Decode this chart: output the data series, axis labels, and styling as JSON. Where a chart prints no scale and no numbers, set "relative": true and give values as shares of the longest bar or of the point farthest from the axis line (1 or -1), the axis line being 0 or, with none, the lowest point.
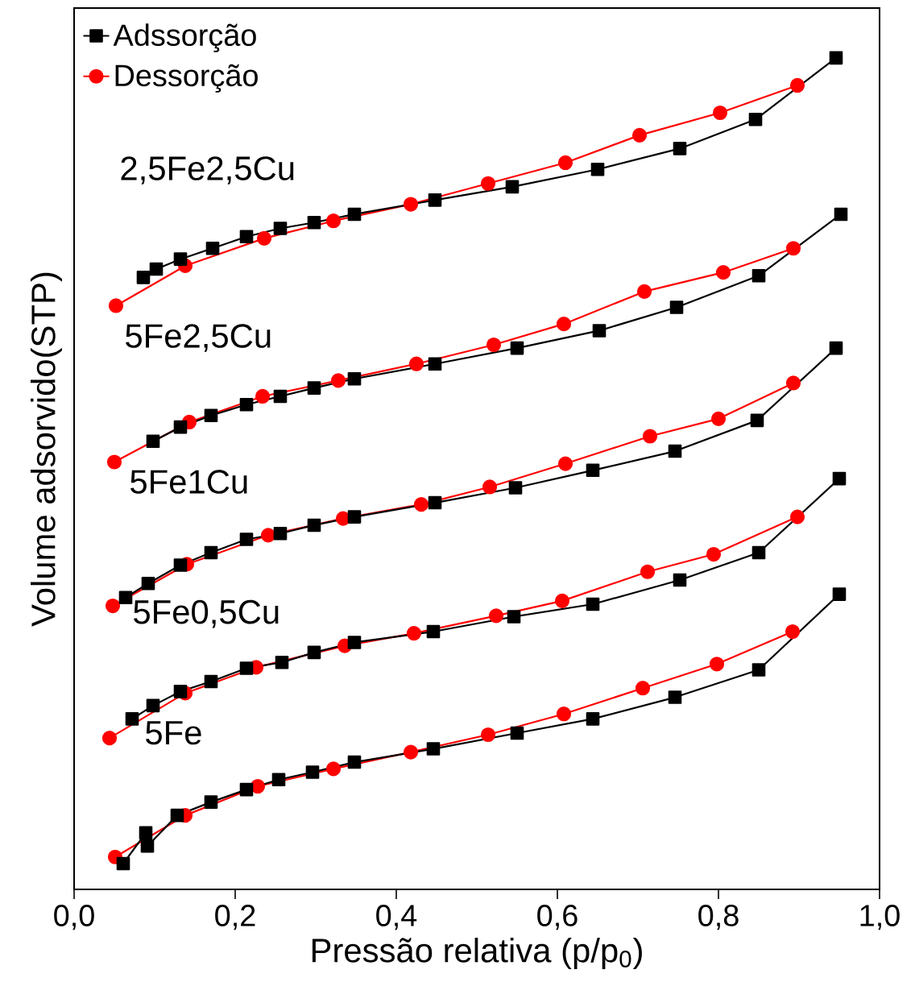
{
  "chart_data": {
    "type": "line",
    "relative": true,
    "xlabel": "Pressão relativa (p/p$_{0}$)",
    "ylabel": "Volume adsorvido(STP)",
    "xlim": [
      0,
      1
    ],
    "xticks": [
      {
        "value": 0,
        "label": "0,0"
      },
      {
        "value": 0.2,
        "label": "0,2"
      },
      {
        "value": 0.4,
        "label": "0,4"
      },
      {
        "value": 0.6,
        "label": "0,6"
      },
      {
        "value": 0.8,
        "label": "0,8"
      },
      {
        "value": 1,
        "label": "1,0"
      }
    ],
    "legend": "top left",
    "annotations": [
      "2,5Fe2,5Cu",
      "5Fe2,5Cu",
      "5Fe1Cu",
      "5Fe0,5Cu",
      "5Fe"
    ],
    "series": [
      {
        "name": "Adssorção",
        "color": "#000000",
        "marker": "square",
        "x": [
          0.086,
          0.102,
          0.132,
          0.172,
          0.214,
          0.256,
          0.298,
          0.348,
          0.448,
          0.544,
          0.65,
          0.752,
          0.846,
          0.946
        ],
        "values": [
          0.736,
          0.746,
          0.758,
          0.771,
          0.785,
          0.795,
          0.802,
          0.812,
          0.829,
          0.845,
          0.866,
          0.891,
          0.926,
          1
        ]
      },
      {
        "name": "Dessorção",
        "color": "#ff0000",
        "marker": "circle",
        "x": [
          0.052,
          0.138,
          0.236,
          0.322,
          0.418,
          0.514,
          0.61,
          0.702,
          0.802,
          0.898
        ],
        "values": [
          0.702,
          0.75,
          0.783,
          0.804,
          0.824,
          0.849,
          0.874,
          0.907,
          0.934,
          0.967
        ]
      },
      {
        "color": "#000000",
        "marker": "square",
        "x": [
          0.098,
          0.132,
          0.17,
          0.214,
          0.256,
          0.298,
          0.348,
          0.448,
          0.55,
          0.652,
          0.748,
          0.85,
          0.952
        ],
        "values": [
          0.539,
          0.556,
          0.57,
          0.583,
          0.593,
          0.603,
          0.614,
          0.632,
          0.651,
          0.672,
          0.7,
          0.738,
          0.812
        ]
      },
      {
        "color": "#ff0000",
        "marker": "circle",
        "x": [
          0.05,
          0.143,
          0.234,
          0.328,
          0.425,
          0.521,
          0.608,
          0.708,
          0.806,
          0.893
        ],
        "values": [
          0.514,
          0.562,
          0.593,
          0.612,
          0.632,
          0.655,
          0.68,
          0.719,
          0.742,
          0.771
        ]
      },
      {
        "color": "#000000",
        "marker": "square",
        "x": [
          0.064,
          0.092,
          0.132,
          0.17,
          0.214,
          0.256,
          0.298,
          0.348,
          0.448,
          0.548,
          0.644,
          0.746,
          0.848,
          0.946
        ],
        "values": [
          0.351,
          0.368,
          0.39,
          0.405,
          0.421,
          0.428,
          0.438,
          0.448,
          0.465,
          0.483,
          0.504,
          0.527,
          0.564,
          0.651
        ]
      },
      {
        "color": "#ff0000",
        "marker": "circle",
        "x": [
          0.048,
          0.14,
          0.241,
          0.334,
          0.431,
          0.516,
          0.61,
          0.715,
          0.8,
          0.893
        ],
        "values": [
          0.341,
          0.391,
          0.426,
          0.446,
          0.463,
          0.484,
          0.512,
          0.545,
          0.566,
          0.609
        ]
      },
      {
        "color": "#000000",
        "marker": "square",
        "x": [
          0.072,
          0.098,
          0.132,
          0.17,
          0.214,
          0.258,
          0.298,
          0.348,
          0.446,
          0.546,
          0.644,
          0.752,
          0.85,
          0.95
        ],
        "values": [
          0.205,
          0.221,
          0.238,
          0.25,
          0.266,
          0.273,
          0.285,
          0.297,
          0.31,
          0.328,
          0.343,
          0.372,
          0.405,
          0.494
        ]
      },
      {
        "color": "#ff0000",
        "marker": "circle",
        "x": [
          0.044,
          0.138,
          0.226,
          0.336,
          0.422,
          0.524,
          0.606,
          0.712,
          0.794,
          0.898
        ],
        "values": [
          0.182,
          0.236,
          0.267,
          0.293,
          0.308,
          0.329,
          0.347,
          0.382,
          0.403,
          0.448
        ]
      },
      {
        "color": "#000000",
        "marker": "square",
        "x": [
          0.061,
          0.089,
          0.091,
          0.128,
          0.17,
          0.214,
          0.254,
          0.296,
          0.348,
          0.446,
          0.55,
          0.644,
          0.746,
          0.85,
          0.95
        ],
        "values": [
          0.031,
          0.068,
          0.052,
          0.089,
          0.105,
          0.12,
          0.132,
          0.141,
          0.153,
          0.169,
          0.188,
          0.205,
          0.231,
          0.264,
          0.355
        ]
      },
      {
        "color": "#ff0000",
        "marker": "circle",
        "x": [
          0.051,
          0.138,
          0.228,
          0.322,
          0.418,
          0.514,
          0.608,
          0.706,
          0.798,
          0.892
        ],
        "values": [
          0.039,
          0.089,
          0.124,
          0.145,
          0.165,
          0.186,
          0.211,
          0.242,
          0.271,
          0.31
        ]
      }
    ]
  }
}
